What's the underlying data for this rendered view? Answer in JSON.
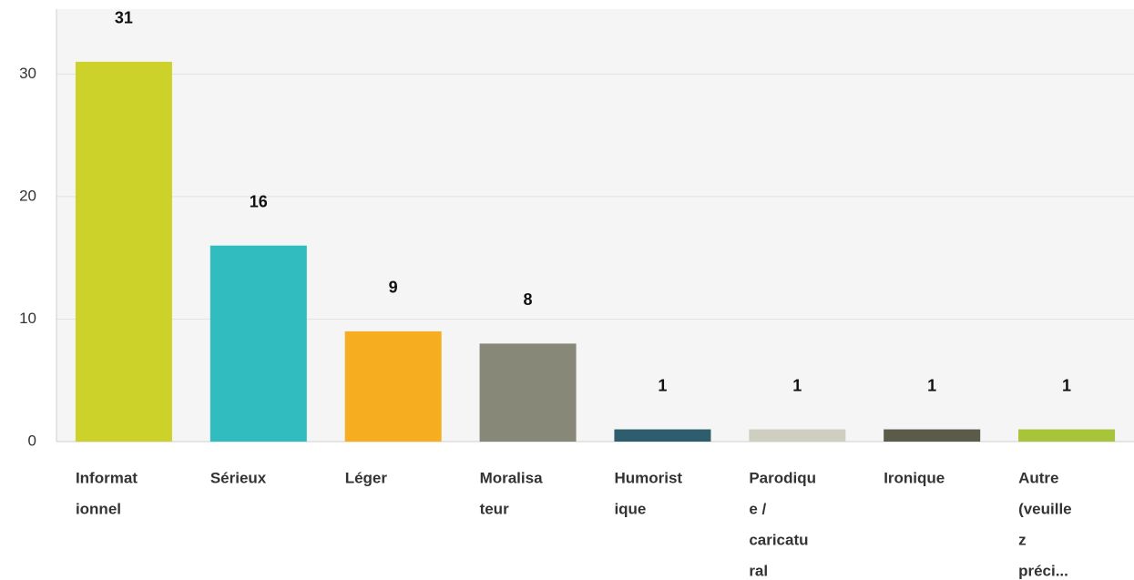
{
  "chart_data": {
    "type": "bar",
    "categories": [
      [
        "Informat",
        "ionnel"
      ],
      [
        "Sérieux"
      ],
      [
        "Léger"
      ],
      [
        "Moralisa",
        "teur"
      ],
      [
        "Humorist",
        "ique"
      ],
      [
        "Parodiqu",
        "e /",
        "caricatu",
        "ral"
      ],
      [
        "Ironique"
      ],
      [
        "Autre",
        "(veuille",
        "z",
        "préci..."
      ]
    ],
    "values": [
      31,
      16,
      9,
      8,
      1,
      1,
      1,
      1
    ],
    "colors": [
      "#cdd22a",
      "#31bcc0",
      "#f6ad1f",
      "#878878",
      "#2e5d6e",
      "#cfcfc1",
      "#5b5b49",
      "#a8c43b"
    ],
    "ylim": [
      0,
      35.3
    ],
    "yticks": [
      0,
      10,
      20,
      30
    ],
    "grid": true
  }
}
